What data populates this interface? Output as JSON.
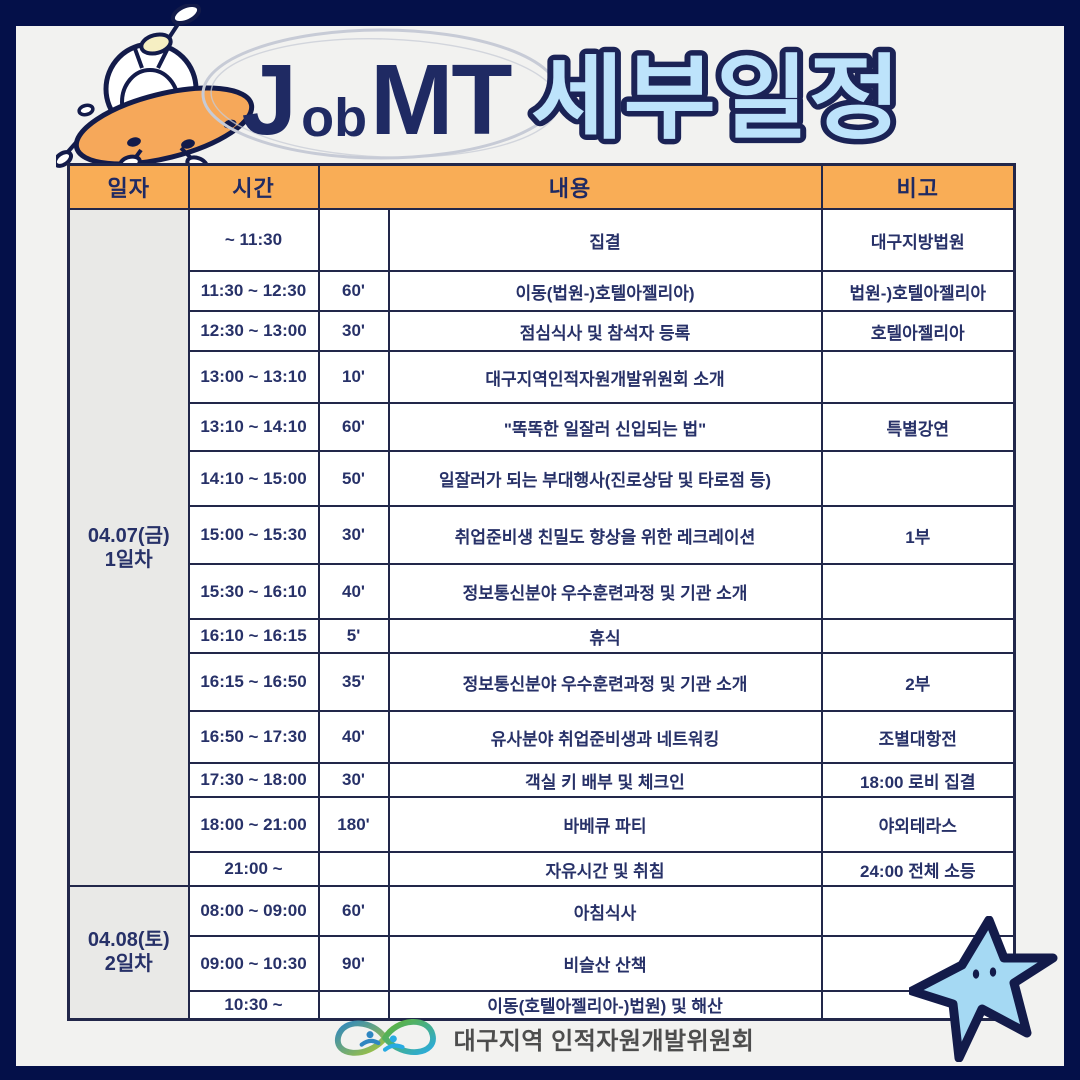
{
  "header": {
    "j": "J",
    "ob": "ob",
    "mt": "MT",
    "korean": "세부일정"
  },
  "table": {
    "columns": [
      {
        "label": "일자",
        "span": 1
      },
      {
        "label": "시간",
        "span": 1
      },
      {
        "label": "내용",
        "span": 2
      },
      {
        "label": "비고",
        "span": 1
      }
    ],
    "days": [
      {
        "date_line1": "04.07(금)",
        "date_line2": "1일차",
        "rows": [
          {
            "time": "~ 11:30",
            "dur": "",
            "content": "집결",
            "note": "대구지방법원"
          },
          {
            "time": "11:30 ~ 12:30",
            "dur": "60'",
            "content": "이동(법원-)호텔아젤리아)",
            "note": "법원-)호텔아젤리아"
          },
          {
            "time": "12:30 ~ 13:00",
            "dur": "30'",
            "content": "점심식사 및 참석자 등록",
            "note": "호텔아젤리아"
          },
          {
            "time": "13:00 ~ 13:10",
            "dur": "10'",
            "content": "대구지역인적자원개발위원회 소개",
            "note": ""
          },
          {
            "time": "13:10 ~ 14:10",
            "dur": "60'",
            "content": "\"똑똑한 일잘러 신입되는 법\"",
            "note": "특별강연"
          },
          {
            "time": "14:10 ~ 15:00",
            "dur": "50'",
            "content": "일잘러가 되는 부대행사(진로상담 및 타로점 등)",
            "note": ""
          },
          {
            "time": "15:00 ~ 15:30",
            "dur": "30'",
            "content": "취업준비생 친밀도 향상을 위한 레크레이션",
            "note": "1부"
          },
          {
            "time": "15:30 ~ 16:10",
            "dur": "40'",
            "content": "정보통신분야 우수훈련과정 및 기관 소개",
            "note": ""
          },
          {
            "time": "16:10 ~ 16:15",
            "dur": "5'",
            "content": "휴식",
            "note": ""
          },
          {
            "time": "16:15 ~ 16:50",
            "dur": "35'",
            "content": "정보통신분야 우수훈련과정 및 기관 소개",
            "note": "2부"
          },
          {
            "time": "16:50 ~ 17:30",
            "dur": "40'",
            "content": "유사분야 취업준비생과 네트워킹",
            "note": "조별대항전"
          },
          {
            "time": "17:30 ~ 18:00",
            "dur": "30'",
            "content": "객실 키 배부 및 체크인",
            "note": "18:00 로비 집결"
          },
          {
            "time": "18:00 ~ 21:00",
            "dur": "180'",
            "content": "바베큐 파티",
            "note": "야외테라스"
          },
          {
            "time": "21:00 ~",
            "dur": "",
            "content": "자유시간 및 취침",
            "note": "24:00 전체 소등"
          }
        ]
      },
      {
        "date_line1": "04.08(토)",
        "date_line2": "2일차",
        "rows": [
          {
            "time": "08:00 ~ 09:00",
            "dur": "60'",
            "content": "아침식사",
            "note": ""
          },
          {
            "time": "09:00 ~ 10:30",
            "dur": "90'",
            "content": "비슬산 산책",
            "note": ""
          },
          {
            "time": "10:30 ~",
            "dur": "",
            "content": "이동(호텔아젤리아-)법원) 및 해산",
            "note": ""
          }
        ]
      }
    ]
  },
  "footer": {
    "org_name": "대구지역 인적자원개발위원회"
  },
  "illustrations": {
    "ufo": "ufo-alien-saucer",
    "star": "starfish",
    "logo": "infinity-people-logo"
  },
  "colors": {
    "page_border_navy": "#041049",
    "poster_bg": "#f2f2f0",
    "header_orange": "#f9ad56",
    "text_navy": "#273168",
    "title_navy": "#1f2a63",
    "title_lightblue": "#bde3fb",
    "date_col_gray": "#e9e9e7",
    "starfish_blue": "#a5d9f3"
  }
}
